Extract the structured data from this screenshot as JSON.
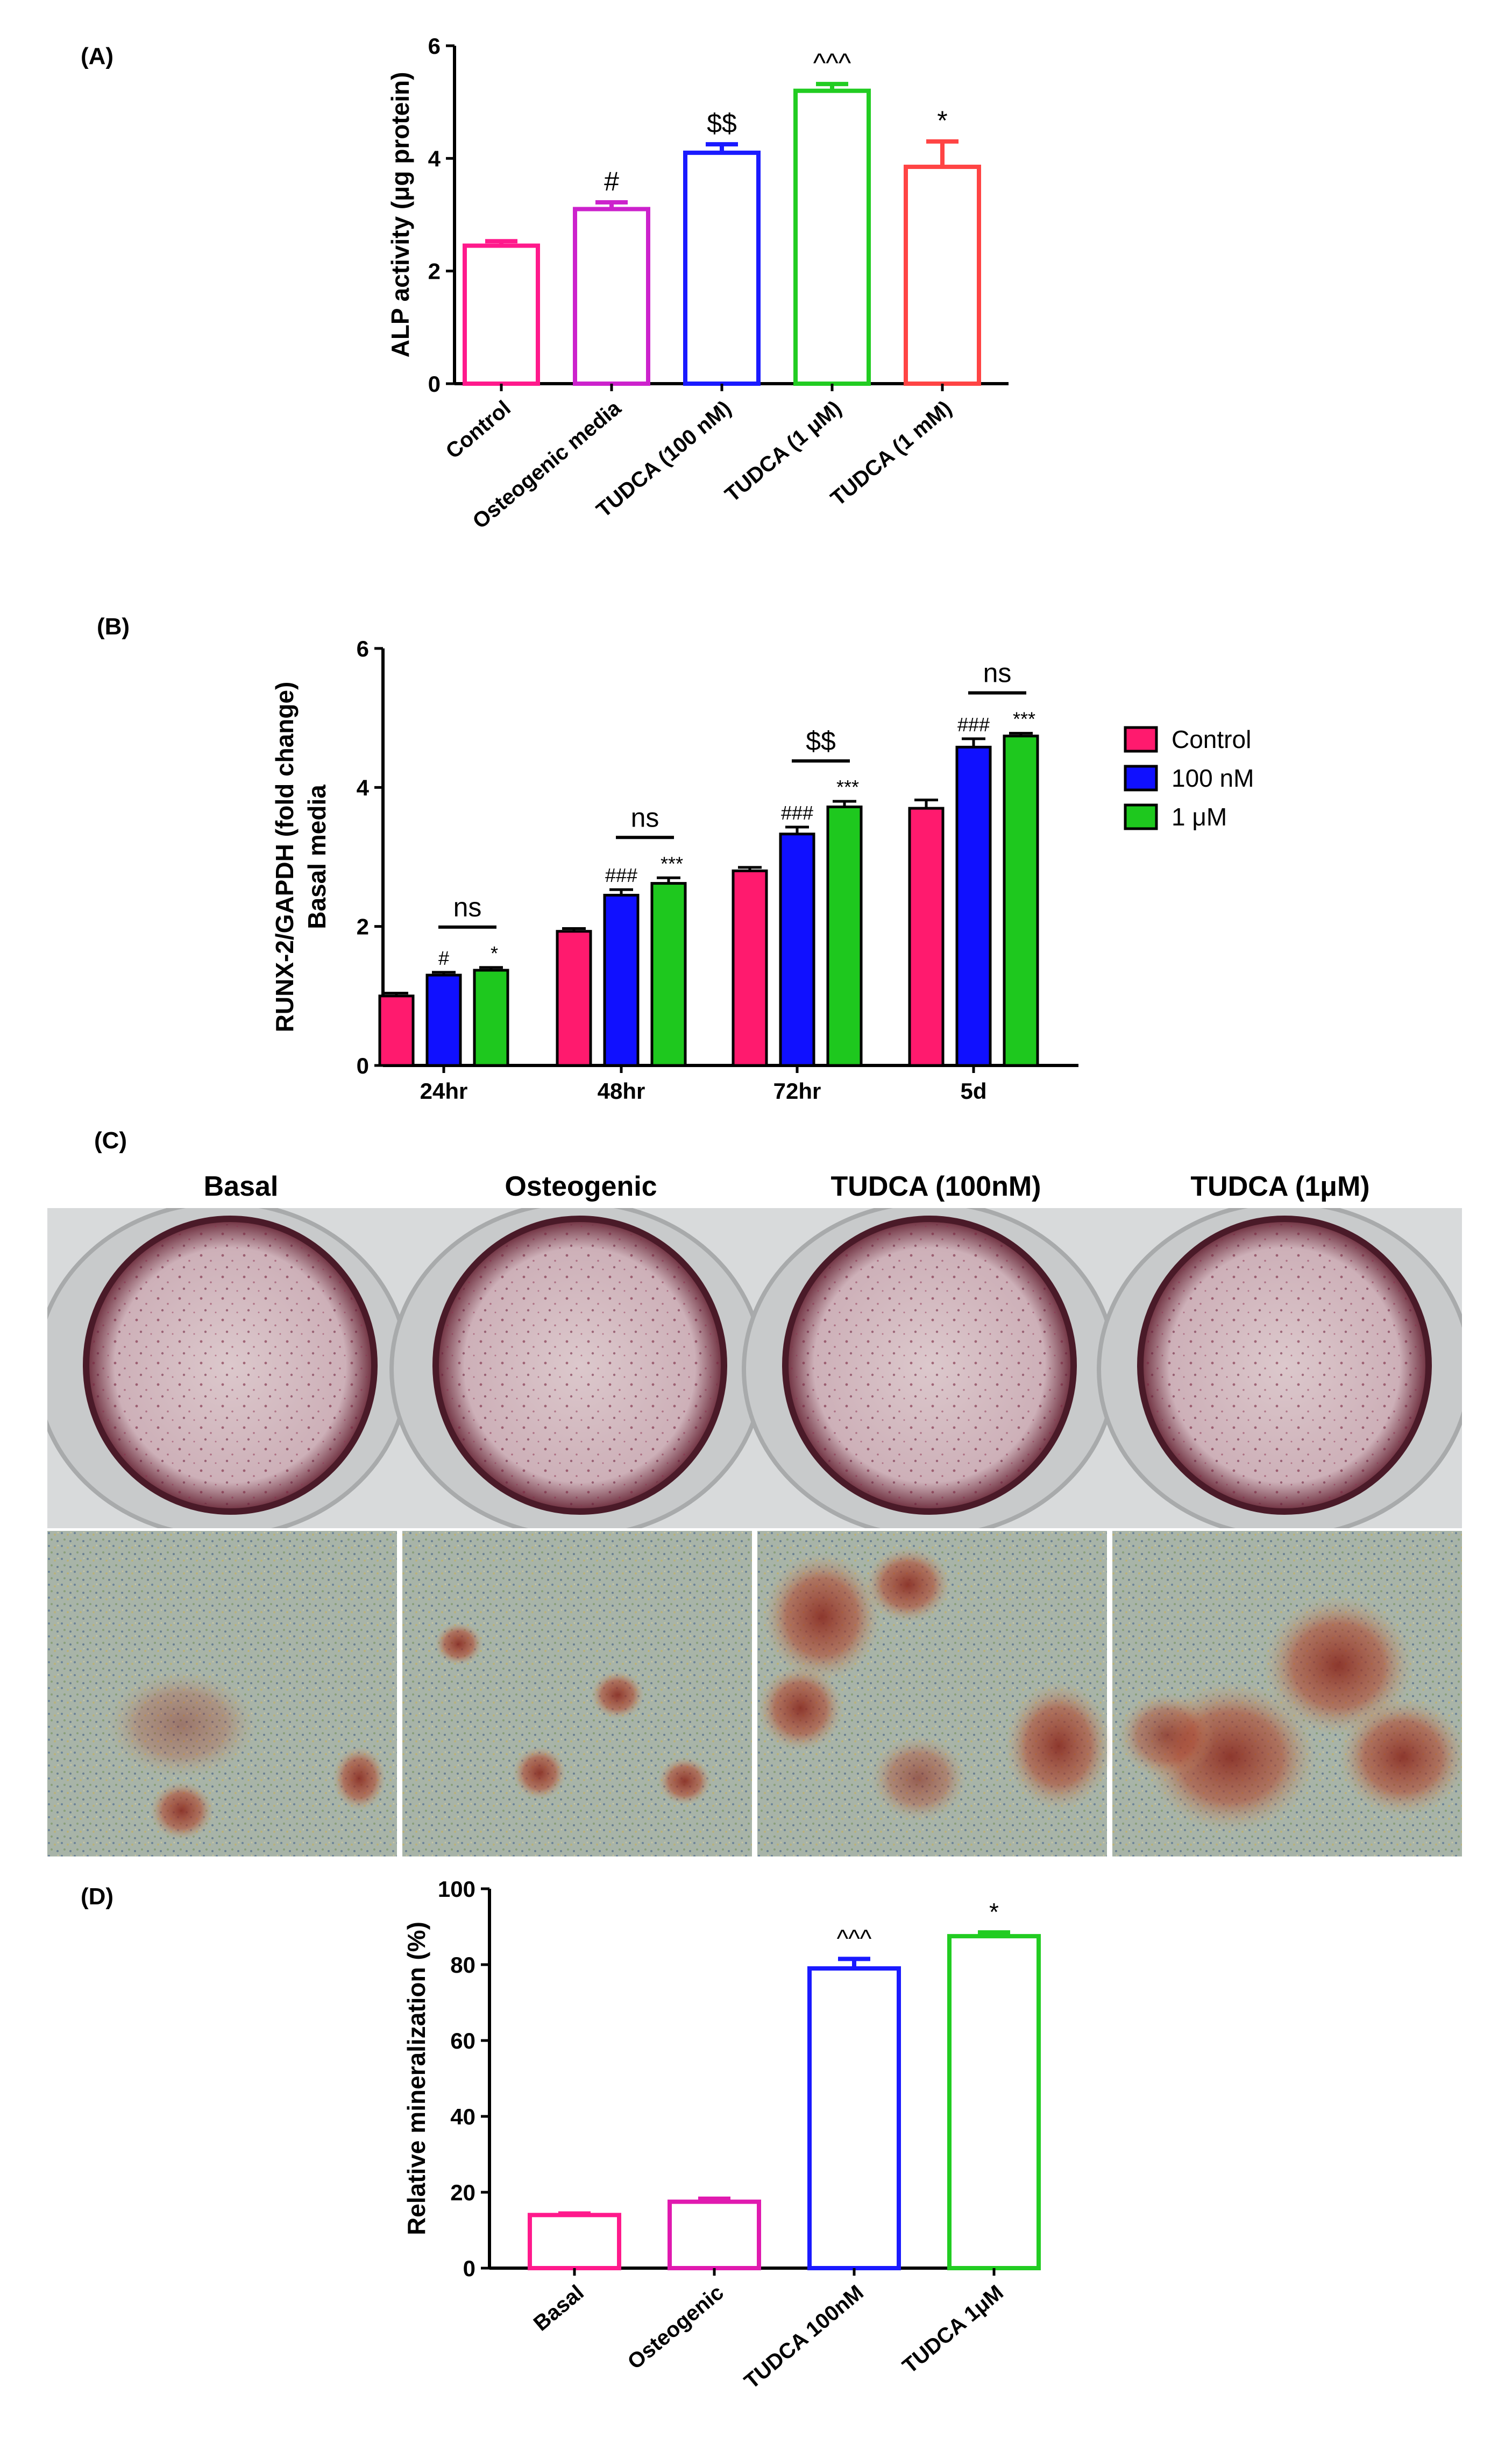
{
  "panels": {
    "a_label": "(A)",
    "b_label": "(B)",
    "c_label": "(C)",
    "d_label": "(D)"
  },
  "photos": {
    "titles": [
      "Basal",
      "Osteogenic",
      "TUDCA (100nM)",
      "TUDCA (1μM)"
    ]
  },
  "chart_data": [
    {
      "type": "bar",
      "panel": "(A)",
      "categories": [
        "Control",
        "Osteogenic media",
        "TUDCA (100 nM)",
        "TUDCA (1 μM)",
        "TUDCA (1 mM)"
      ],
      "values": [
        2.45,
        3.1,
        4.1,
        5.2,
        3.85
      ],
      "errors": [
        0.08,
        0.12,
        0.15,
        0.12,
        0.45
      ],
      "annotations": [
        "",
        "#",
        "$$",
        "^^^",
        "*"
      ],
      "colors": [
        "#ff1a8c",
        "#cc22cc",
        "#1a1aff",
        "#22cc22",
        "#ff4444"
      ],
      "ylabel": "ALP activity (μg protein)",
      "ylim": [
        0,
        6
      ],
      "yticks": [
        0,
        2,
        4,
        6
      ],
      "filled": false
    },
    {
      "type": "bar",
      "panel": "(B)",
      "categories": [
        "24hr",
        "48hr",
        "72hr",
        "5d"
      ],
      "series": [
        {
          "name": "Control",
          "color": "#ff1a6e",
          "values": [
            1.0,
            1.93,
            2.8,
            3.7
          ],
          "errors": [
            0.04,
            0.04,
            0.05,
            0.12
          ]
        },
        {
          "name": "100 nM",
          "color": "#1010ff",
          "values": [
            1.3,
            2.45,
            3.33,
            4.58
          ],
          "errors": [
            0.04,
            0.08,
            0.1,
            0.12
          ]
        },
        {
          "name": "1 μM",
          "color": "#1ec81e",
          "values": [
            1.37,
            2.62,
            3.72,
            4.74
          ],
          "errors": [
            0.04,
            0.08,
            0.08,
            0.04
          ]
        }
      ],
      "annotations_100nM": [
        "#",
        "###",
        "###",
        "###"
      ],
      "annotations_1uM": [
        "*",
        "***",
        "***",
        "***"
      ],
      "bracket_labels": [
        "ns",
        "ns",
        "$$",
        "ns"
      ],
      "ylabel": "RUNX-2/GAPDH (fold change)",
      "ylabel2": "Basal media",
      "ylim": [
        0,
        6
      ],
      "yticks": [
        0,
        2,
        4,
        6
      ],
      "legend": "right",
      "filled": true
    },
    {
      "type": "bar",
      "panel": "(D)",
      "categories": [
        "Basal",
        "Osteogenic",
        "TUDCA 100nM",
        "TUDCA 1μM"
      ],
      "values": [
        14,
        17.5,
        79,
        87.5
      ],
      "errors": [
        0.4,
        0.8,
        2.5,
        1.0
      ],
      "annotations": [
        "",
        "",
        "^^^",
        "*"
      ],
      "colors": [
        "#ff1a8c",
        "#e01aaf",
        "#1a1aff",
        "#22cc22"
      ],
      "ylabel": "Relative mineralization (%)",
      "ylim": [
        0,
        100
      ],
      "yticks": [
        0,
        20,
        40,
        60,
        80,
        100
      ],
      "filled": false
    }
  ]
}
